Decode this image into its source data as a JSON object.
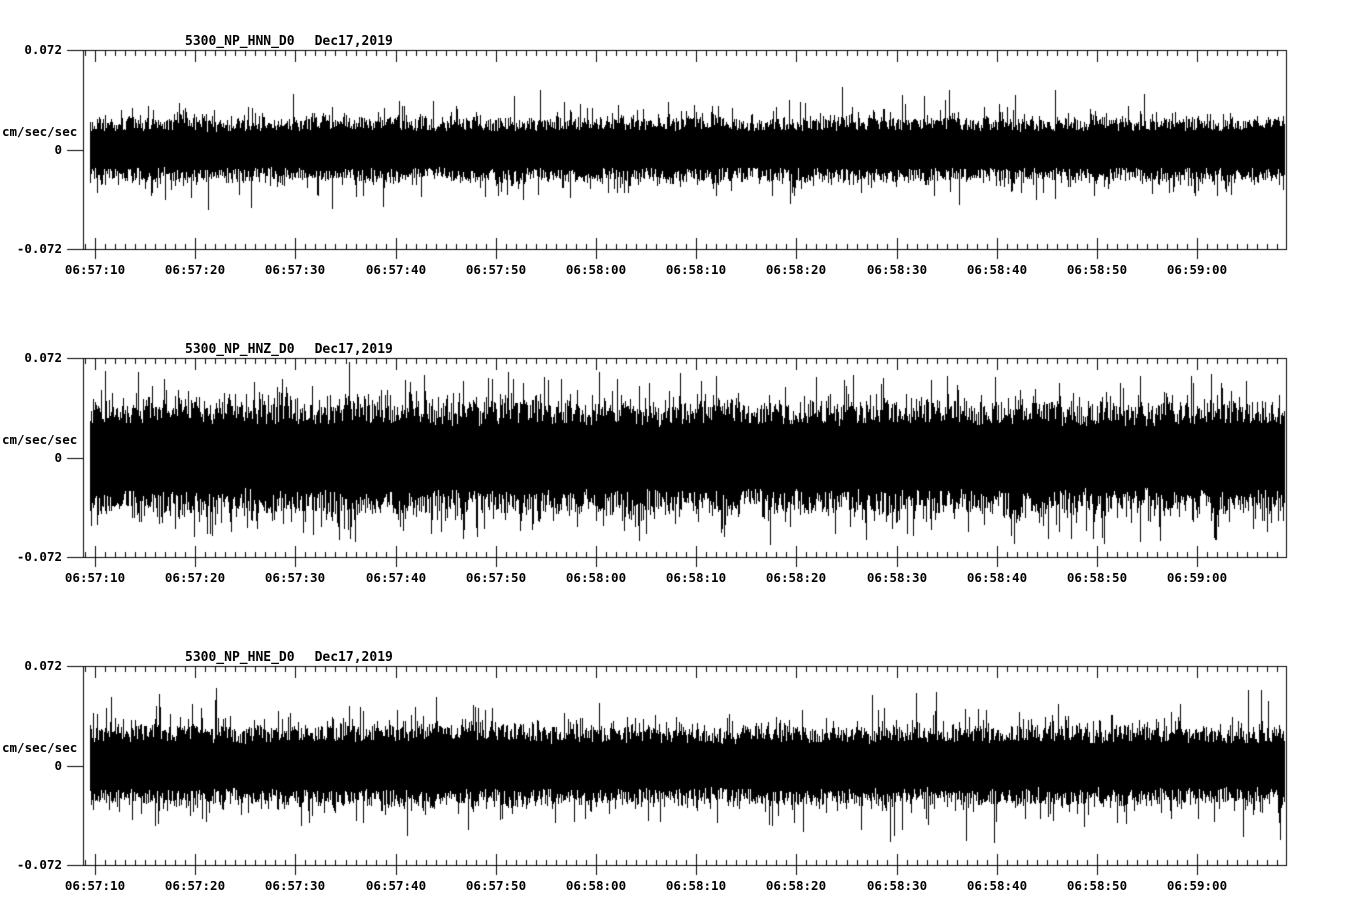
{
  "page": {
    "background_color": "#ffffff",
    "foreground_color": "#000000"
  },
  "chart_data": [
    {
      "type": "line",
      "subtype": "seismogram-trace",
      "title": "5300_NP_HNN_D0",
      "title_date": "Dec17,2019",
      "ylabel": "cm/sec/sec",
      "ylim": [
        -0.072,
        0.072
      ],
      "ytick_labels": [
        "0.072",
        "0",
        "-0.072"
      ],
      "ytick_values": [
        0.072,
        0,
        -0.072
      ],
      "xtick_labels": [
        "06:57:10",
        "06:57:20",
        "06:57:30",
        "06:57:40",
        "06:57:50",
        "06:58:00",
        "06:58:10",
        "06:58:20",
        "06:58:30",
        "06:58:40",
        "06:58:50",
        "06:59:00"
      ],
      "x_major_tick_seconds": 10,
      "x_minor_tick_seconds": 1,
      "grid": false,
      "legend": false,
      "trace_color": "#000000",
      "signal": {
        "description": "continuous broadband noise, zero-mean",
        "typical_amplitude": 0.019,
        "peak_amplitude": 0.042
      }
    },
    {
      "type": "line",
      "subtype": "seismogram-trace",
      "title": "5300_NP_HNZ_D0",
      "title_date": "Dec17,2019",
      "ylabel": "cm/sec/sec",
      "ylim": [
        -0.072,
        0.072
      ],
      "ytick_labels": [
        "0.072",
        "0",
        "-0.072"
      ],
      "ytick_values": [
        0.072,
        0,
        -0.072
      ],
      "xtick_labels": [
        "06:57:10",
        "06:57:20",
        "06:57:30",
        "06:57:40",
        "06:57:50",
        "06:58:00",
        "06:58:10",
        "06:58:20",
        "06:58:30",
        "06:58:40",
        "06:58:50",
        "06:59:00"
      ],
      "x_major_tick_seconds": 10,
      "x_minor_tick_seconds": 1,
      "grid": false,
      "legend": false,
      "trace_color": "#000000",
      "signal": {
        "description": "continuous broadband noise, zero-mean, densest of the three",
        "typical_amplitude": 0.034,
        "peak_amplitude": 0.058
      }
    },
    {
      "type": "line",
      "subtype": "seismogram-trace",
      "title": "5300_NP_HNE_D0",
      "title_date": "Dec17,2019",
      "ylabel": "cm/sec/sec",
      "ylim": [
        -0.072,
        0.072
      ],
      "ytick_labels": [
        "0.072",
        "0",
        "-0.072"
      ],
      "ytick_values": [
        0.072,
        0,
        -0.072
      ],
      "xtick_labels": [
        "06:57:10",
        "06:57:20",
        "06:57:30",
        "06:57:40",
        "06:57:50",
        "06:58:00",
        "06:58:10",
        "06:58:20",
        "06:58:30",
        "06:58:40",
        "06:58:50",
        "06:59:00"
      ],
      "x_major_tick_seconds": 10,
      "x_minor_tick_seconds": 1,
      "grid": false,
      "legend": false,
      "trace_color": "#000000",
      "signal": {
        "description": "continuous broadband noise, zero-mean",
        "typical_amplitude": 0.024,
        "peak_amplitude": 0.052
      }
    }
  ]
}
